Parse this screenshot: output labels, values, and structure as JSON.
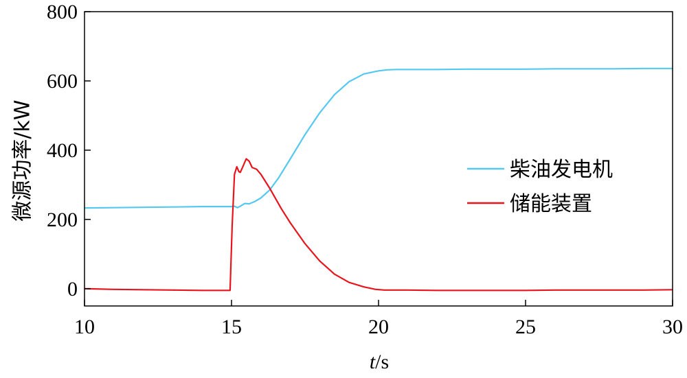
{
  "chart_data": {
    "type": "line",
    "xlabel_italic": "t",
    "xlabel_rest": "/s",
    "ylabel": "微源功率/kW",
    "xlim": [
      10,
      30
    ],
    "ylim": [
      -50,
      800
    ],
    "xticks": [
      10,
      15,
      20,
      25,
      30
    ],
    "yticks": [
      0,
      200,
      400,
      600,
      800
    ],
    "legend_position": "center-right",
    "grid": false,
    "series": [
      {
        "name": "柴油发电机",
        "color": "#55c8f0",
        "x": [
          10,
          11,
          12,
          13,
          14,
          15,
          15.1,
          15.2,
          15.3,
          15.45,
          15.6,
          15.8,
          16.0,
          16.3,
          16.6,
          17.0,
          17.5,
          18.0,
          18.5,
          19.0,
          19.5,
          20.0,
          20.3,
          20.6,
          21.0,
          22,
          23,
          24,
          25,
          26,
          27,
          28,
          29,
          30
        ],
        "y": [
          233,
          234,
          235,
          236,
          237,
          237,
          238,
          234,
          238,
          246,
          245,
          252,
          262,
          285,
          320,
          375,
          445,
          508,
          560,
          598,
          620,
          629,
          632,
          633,
          633,
          633,
          634,
          634,
          634,
          635,
          635,
          635,
          636,
          636
        ]
      },
      {
        "name": "储能装置",
        "color": "#e8141c",
        "x": [
          10,
          11,
          12,
          13,
          14,
          14.95,
          15.02,
          15.1,
          15.18,
          15.25,
          15.3,
          15.4,
          15.5,
          15.6,
          15.7,
          15.85,
          16.0,
          16.3,
          16.7,
          17.0,
          17.5,
          18.0,
          18.5,
          19.0,
          19.5,
          19.9,
          20.2,
          21,
          22,
          23,
          24,
          25,
          26,
          27,
          28,
          29,
          30
        ],
        "y": [
          0,
          -2,
          -3,
          -4,
          -5,
          -5,
          180,
          330,
          352,
          338,
          336,
          355,
          375,
          368,
          350,
          345,
          330,
          290,
          230,
          190,
          130,
          80,
          42,
          18,
          5,
          -2,
          -4,
          -4,
          -5,
          -5,
          -5,
          -5,
          -4,
          -4,
          -4,
          -4,
          -3
        ]
      }
    ]
  }
}
